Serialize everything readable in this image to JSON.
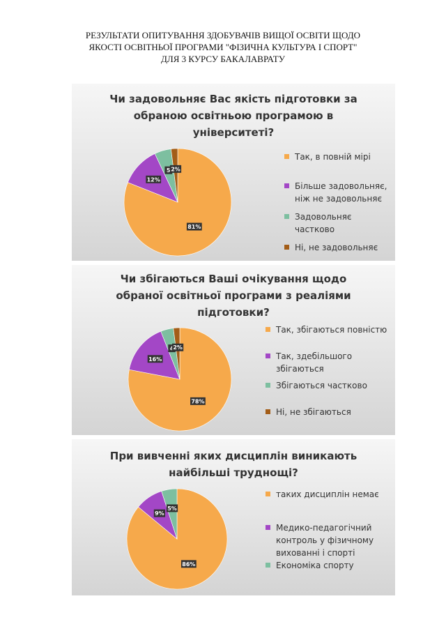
{
  "header": {
    "title_lines": [
      "РЕЗУЛЬТАТИ ОПИТУВАННЯ ЗДОБУВАЧІВ ВИЩОЇ ОСВІТИ ЩОДО",
      "ЯКОСТІ ОСВІТНЬОЇ ПРОГРАМИ  \"ФІЗИЧНА КУЛЬТУРА І СПОРТ\"",
      "ДЛЯ 3 КУРСУ БАКАЛАВРАТУ"
    ]
  },
  "colors": {
    "orange": "#f6a94b",
    "purple": "#a347c6",
    "teal": "#7dbfa0",
    "brown": "#a35d18",
    "label_box": "#333333"
  },
  "chart_data": [
    {
      "type": "pie",
      "title": "Чи задовольняє Вас якість підготовки за обраною освітньою програмою  в університеті?",
      "title_lines": [
        "Чи задовольняє Вас якість підготовки за",
        "обраною освітньою програмою  в",
        "університеті?"
      ],
      "legend_position": "right",
      "slices": [
        {
          "label": "Так, в повній мірі",
          "label_lines": [
            "Так, в повній мірі"
          ],
          "value": 81,
          "display": "81%",
          "color": "#f6a94b"
        },
        {
          "label": "Більше задовольняє, ніж не задовольняє",
          "label_lines": [
            "Більше задовольняє,",
            "ніж не задовольняє"
          ],
          "value": 12,
          "display": "12%",
          "color": "#a347c6"
        },
        {
          "label": "Задовольняє частково",
          "label_lines": [
            "Задовольняє",
            "частково"
          ],
          "value": 5,
          "display": "5",
          "color": "#7dbfa0"
        },
        {
          "label": "Ні, не задовольняє",
          "label_lines": [
            "Ні, не задовольняє"
          ],
          "value": 2,
          "display": "2%",
          "color": "#a35d18"
        }
      ]
    },
    {
      "type": "pie",
      "title": "Чи збігаються Ваші очікування щодо обраної освітньої програми з реаліями підготовки?",
      "title_lines": [
        "Чи збігаються Ваші очікування щодо",
        "обраної освітньої програми з реаліями",
        "підготовки?"
      ],
      "legend_position": "right",
      "slices": [
        {
          "label": "Так, збігаються повністю",
          "label_lines": [
            "Так, збігаються повністю"
          ],
          "value": 78,
          "display": "78%",
          "color": "#f6a94b"
        },
        {
          "label": "Так, здебільшого збігаються",
          "label_lines": [
            "Так, здебільшого",
            "збігаються"
          ],
          "value": 16,
          "display": "16%",
          "color": "#a347c6"
        },
        {
          "label": "Збігаються частково",
          "label_lines": [
            "Збігаються частково"
          ],
          "value": 4,
          "display": "4",
          "color": "#7dbfa0"
        },
        {
          "label": "Ні, не збігаються",
          "label_lines": [
            "Ні, не збігаються"
          ],
          "value": 2,
          "display": "2%",
          "color": "#a35d18"
        }
      ]
    },
    {
      "type": "pie",
      "title": "При вивченні яких дисциплін виникають найбільші труднощі?",
      "title_lines": [
        "При вивченні яких дисциплін виникають",
        "найбільші труднощі?"
      ],
      "legend_position": "right",
      "slices": [
        {
          "label": "таких дисциплін немає",
          "label_lines": [
            "таких дисциплін немає"
          ],
          "value": 86,
          "display": "86%",
          "color": "#f6a94b"
        },
        {
          "label": "Медико-педагогічний контроль у фізичному вихованні і спорті",
          "label_lines": [
            "Медико-педагогічний",
            "контроль у фізичному",
            "вихованні і спорті"
          ],
          "value": 9,
          "display": "9%",
          "color": "#a347c6"
        },
        {
          "label": "Економіка спорту",
          "label_lines": [
            "Економіка спорту"
          ],
          "value": 5,
          "display": "5%",
          "color": "#7dbfa0"
        }
      ]
    }
  ]
}
